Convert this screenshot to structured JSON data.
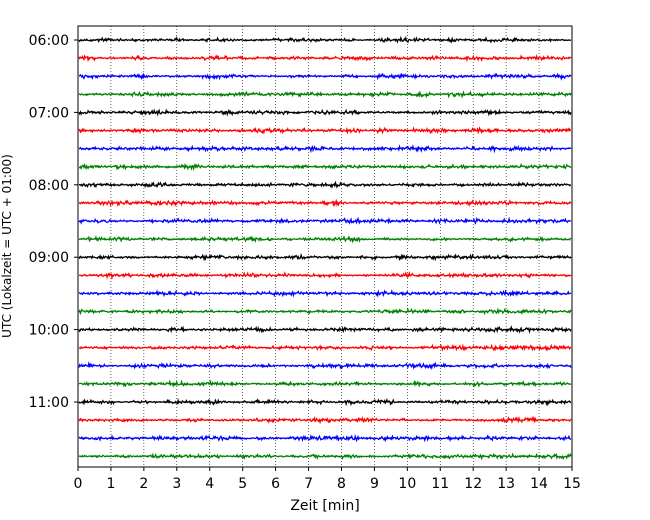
{
  "chart_data": {
    "type": "line",
    "title": "",
    "xlabel": "Zeit  [min]",
    "ylabel": "UTC (Lokalzeit = UTC + 01:00)",
    "xlim": [
      0,
      15
    ],
    "x_ticks": [
      "0",
      "1",
      "2",
      "3",
      "4",
      "5",
      "6",
      "7",
      "8",
      "9",
      "10",
      "11",
      "12",
      "13",
      "14",
      "15"
    ],
    "y_ticks": [
      "06:00",
      "07:00",
      "08:00",
      "09:00",
      "10:00",
      "11:00"
    ],
    "grid": "vertical dotted lines at each minute",
    "row_interval_min": 15,
    "trace_colors": [
      "#000000",
      "#ff0000",
      "#0000ff",
      "#008000"
    ],
    "rows": [
      {
        "start": "06:00",
        "color": "#000000"
      },
      {
        "start": "06:15",
        "color": "#ff0000"
      },
      {
        "start": "06:30",
        "color": "#0000ff"
      },
      {
        "start": "06:45",
        "color": "#008000"
      },
      {
        "start": "07:00",
        "color": "#000000"
      },
      {
        "start": "07:15",
        "color": "#ff0000"
      },
      {
        "start": "07:30",
        "color": "#0000ff"
      },
      {
        "start": "07:45",
        "color": "#008000"
      },
      {
        "start": "08:00",
        "color": "#000000"
      },
      {
        "start": "08:15",
        "color": "#ff0000"
      },
      {
        "start": "08:30",
        "color": "#0000ff"
      },
      {
        "start": "08:45",
        "color": "#008000"
      },
      {
        "start": "09:00",
        "color": "#000000"
      },
      {
        "start": "09:15",
        "color": "#ff0000"
      },
      {
        "start": "09:30",
        "color": "#0000ff"
      },
      {
        "start": "09:45",
        "color": "#008000"
      },
      {
        "start": "10:00",
        "color": "#000000"
      },
      {
        "start": "10:15",
        "color": "#ff0000"
      },
      {
        "start": "10:30",
        "color": "#0000ff"
      },
      {
        "start": "10:45",
        "color": "#008000"
      },
      {
        "start": "11:00",
        "color": "#000000"
      },
      {
        "start": "11:15",
        "color": "#ff0000"
      },
      {
        "start": "11:30",
        "color": "#0000ff"
      },
      {
        "start": "11:45",
        "color": "#008000"
      }
    ]
  }
}
